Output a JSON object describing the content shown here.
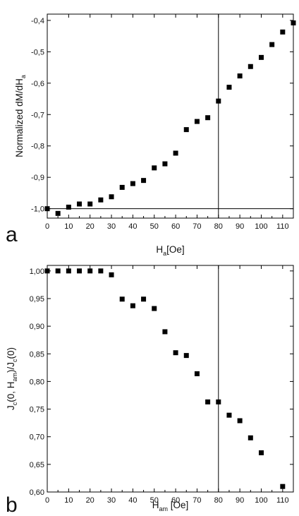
{
  "chart_data": [
    {
      "type": "scatter",
      "panel_label": "a",
      "xlabel": {
        "main": "H",
        "sub": "a",
        "rest": "[Oe]"
      },
      "ylabel": {
        "main": "Normalized dM/dH",
        "sub": "a"
      },
      "xlim": [
        0,
        115
      ],
      "ylim": [
        -1.03,
        -0.38
      ],
      "xticks": [
        0,
        10,
        20,
        30,
        40,
        50,
        60,
        70,
        80,
        90,
        100,
        110
      ],
      "xtick_labels": [
        "0",
        "10",
        "20",
        "30",
        "40",
        "50",
        "60",
        "70",
        "80",
        "90",
        "100",
        "110"
      ],
      "yticks": [
        -1.0,
        -0.9,
        -0.8,
        -0.7,
        -0.6,
        -0.5,
        -0.4
      ],
      "ytick_labels": [
        "-1,0",
        "-0,9",
        "-0,8",
        "-0,7",
        "-0,6",
        "-0,5",
        "-0,4"
      ],
      "reference_lines": {
        "vertical_x": 80,
        "horizontal_y": -1.0
      },
      "marker": "square",
      "color": "#000000",
      "x": [
        0,
        5,
        10,
        15,
        20,
        25,
        30,
        35,
        40,
        45,
        50,
        55,
        60,
        65,
        70,
        75,
        80,
        85,
        90,
        95,
        100,
        105,
        110,
        115
      ],
      "y": [
        -1.0,
        -1.015,
        -0.995,
        -0.985,
        -0.985,
        -0.972,
        -0.962,
        -0.932,
        -0.92,
        -0.91,
        -0.87,
        -0.857,
        -0.823,
        -0.748,
        -0.722,
        -0.71,
        -0.657,
        -0.613,
        -0.577,
        -0.547,
        -0.518,
        -0.477,
        -0.437,
        -0.408
      ]
    },
    {
      "type": "scatter",
      "panel_label": "b",
      "xlabel": {
        "main": "H",
        "sub": "am",
        "rest": " [Oe]"
      },
      "ylabel": {
        "pre": "J",
        "sub1": "c",
        "mid": "(0, H",
        "sub2": "am",
        "mid2": ")/J",
        "sub3": "c",
        "post": "(0)"
      },
      "xlim": [
        0,
        115
      ],
      "ylim": [
        0.6,
        1.01
      ],
      "xticks": [
        0,
        10,
        20,
        30,
        40,
        50,
        60,
        70,
        80,
        90,
        100,
        110
      ],
      "xtick_labels": [
        "0",
        "10",
        "20",
        "30",
        "40",
        "50",
        "60",
        "70",
        "80",
        "90",
        "100",
        "110"
      ],
      "yticks": [
        0.6,
        0.65,
        0.7,
        0.75,
        0.8,
        0.85,
        0.9,
        0.95,
        1.0
      ],
      "ytick_labels": [
        "0,60",
        "0,65",
        "0,70",
        "0,75",
        "0,80",
        "0,85",
        "0,90",
        "0,95",
        "1,00"
      ],
      "reference_lines": {
        "vertical_x": 80
      },
      "marker": "square",
      "color": "#000000",
      "x": [
        0,
        5,
        10,
        15,
        20,
        25,
        30,
        35,
        40,
        45,
        50,
        55,
        60,
        65,
        70,
        75,
        80,
        85,
        90,
        95,
        100,
        110
      ],
      "y": [
        1.0,
        1.0,
        1.0,
        1.0,
        1.0,
        1.0,
        0.993,
        0.949,
        0.937,
        0.949,
        0.932,
        0.89,
        0.852,
        0.847,
        0.814,
        0.763,
        0.763,
        0.739,
        0.729,
        0.698,
        0.671,
        0.61
      ]
    }
  ]
}
